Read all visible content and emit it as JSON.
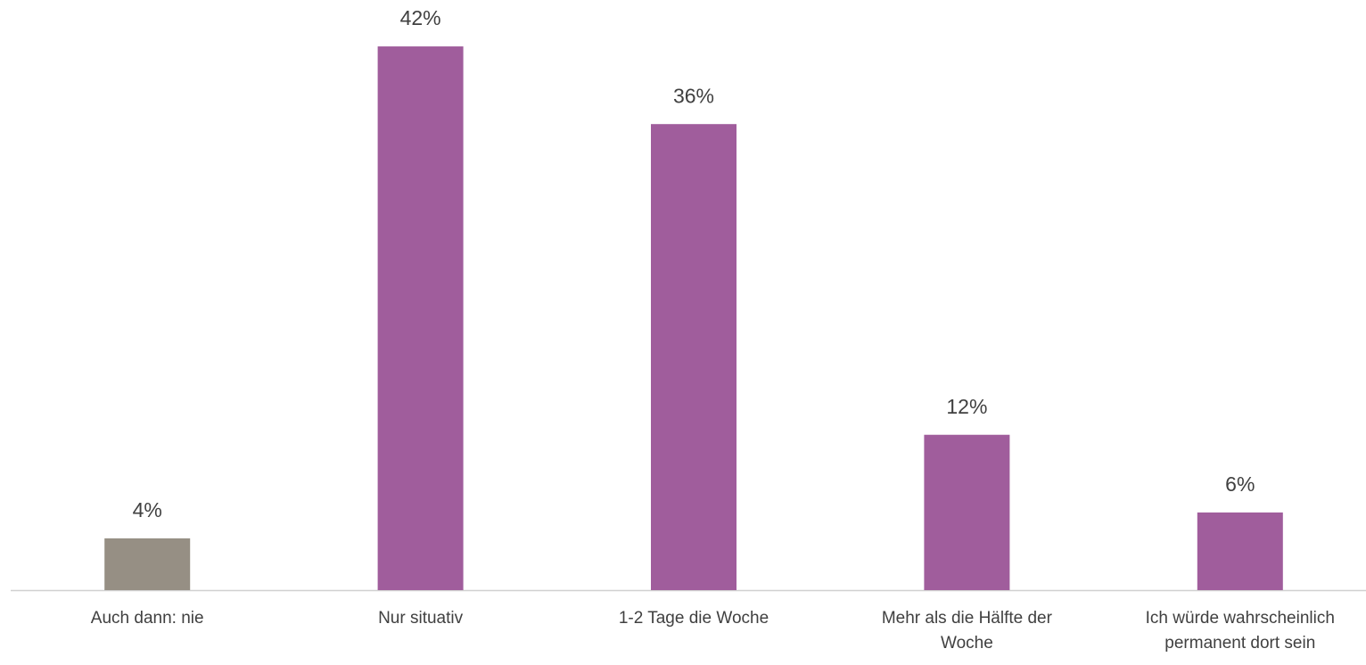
{
  "chart_data": {
    "type": "bar",
    "categories": [
      "Auch dann: nie",
      "Nur situativ",
      "1-2 Tage die Woche",
      "Mehr als die Hälfte der Woche",
      "Ich würde wahrscheinlich permanent dort sein"
    ],
    "values": [
      4,
      42,
      36,
      12,
      6
    ],
    "value_labels": [
      "4%",
      "42%",
      "36%",
      "12%",
      "6%"
    ],
    "colors": [
      "#968f84",
      "#a05d9c",
      "#a05d9c",
      "#a05d9c",
      "#a05d9c"
    ],
    "ylim": [
      0,
      45
    ]
  }
}
